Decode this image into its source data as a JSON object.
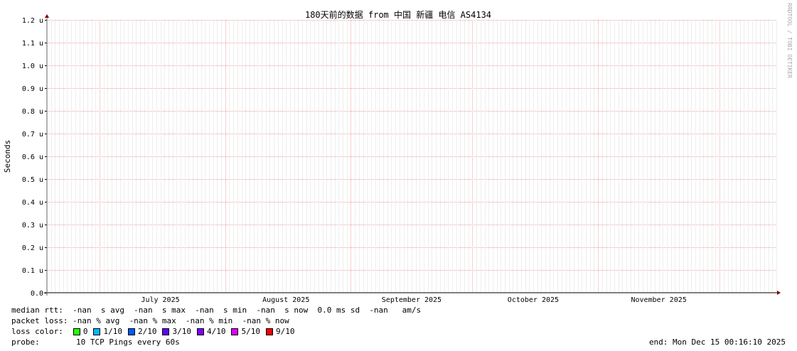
{
  "chart_data": {
    "type": "line",
    "title": "180天前的数据 from 中国 新疆 电信 AS4134",
    "ylabel": "Seconds",
    "xlabel": "",
    "ylim": [
      0,
      1.2e-06
    ],
    "yticks": [
      "0.0",
      "0.1 u",
      "0.2 u",
      "0.3 u",
      "0.4 u",
      "0.5 u",
      "0.6 u",
      "0.7 u",
      "0.8 u",
      "0.9 u",
      "1.0 u",
      "1.1 u",
      "1.2 u"
    ],
    "xrange": [
      "2025-06-18T00:16:10",
      "2025-12-15T00:16:10"
    ],
    "xticks": [
      {
        "label": "July 2025",
        "date": "2025-07-16"
      },
      {
        "label": "August 2025",
        "date": "2025-08-16"
      },
      {
        "label": "September 2025",
        "date": "2025-09-16"
      },
      {
        "label": "October 2025",
        "date": "2025-10-16"
      },
      {
        "label": "November 2025",
        "date": "2025-11-16"
      }
    ],
    "major_grid_dates": [
      "2025-07-01",
      "2025-08-01",
      "2025-09-01",
      "2025-10-01",
      "2025-11-01",
      "2025-12-01"
    ],
    "grid": true,
    "series": [],
    "watermark": "RRDTOOL / TOBI OETIKER"
  },
  "legend": {
    "median_rtt": "median rtt:  -nan  s avg  -nan  s max  -nan  s min  -nan  s now  0.0 ms sd  -nan   am/s",
    "packet_loss": "packet loss: -nan % avg  -nan % max  -nan % min  -nan % now",
    "loss_color_label": "loss color:",
    "loss_colors": [
      {
        "label": "0",
        "color": "#26ff00"
      },
      {
        "label": "1/10",
        "color": "#00b8ff"
      },
      {
        "label": "2/10",
        "color": "#0059ff"
      },
      {
        "label": "3/10",
        "color": "#5e00ff"
      },
      {
        "label": "4/10",
        "color": "#7e00ff"
      },
      {
        "label": "5/10",
        "color": "#dd00ff"
      },
      {
        "label": "9/10",
        "color": "#ff0000"
      }
    ],
    "probe_label": "probe:",
    "probe": "10 TCP Pings every 60s",
    "end": "end: Mon Dec 15 00:16:10 2025"
  }
}
